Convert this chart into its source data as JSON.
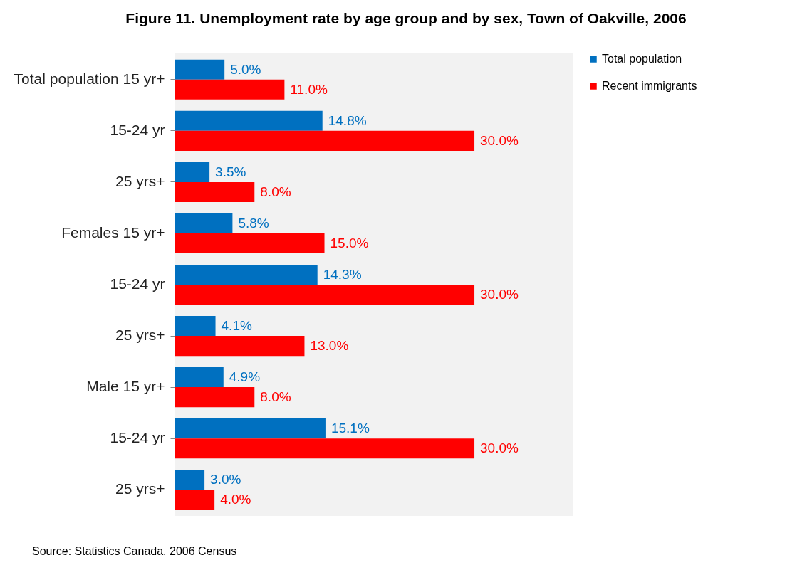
{
  "chart_data": {
    "type": "bar",
    "orientation": "horizontal",
    "title": "Figure 11. Unemployment rate by age group and by sex, Town of Oakville, 2006",
    "categories": [
      "Total population 15 yr+",
      "15-24 yr",
      "25 yrs+",
      "Females 15 yr+",
      "15-24 yr",
      "25 yrs+",
      "Male 15 yr+",
      "15-24 yr",
      "25 yrs+"
    ],
    "series": [
      {
        "name": "Total population",
        "color": "#0070c0",
        "values": [
          5.0,
          14.8,
          3.5,
          5.8,
          14.3,
          4.1,
          4.9,
          15.1,
          3.0
        ],
        "value_labels": [
          "5.0%",
          "14.8%",
          "3.5%",
          "5.8%",
          "14.3%",
          "4.1%",
          "4.9%",
          "15.1%",
          "3.0%"
        ]
      },
      {
        "name": "Recent immigrants",
        "color": "#ff0000",
        "values": [
          11.0,
          30.0,
          8.0,
          15.0,
          30.0,
          13.0,
          8.0,
          30.0,
          4.0
        ],
        "value_labels": [
          "11.0%",
          "30.0%",
          "8.0%",
          "15.0%",
          "30.0%",
          "13.0%",
          "8.0%",
          "30.0%",
          "4.0%"
        ]
      }
    ],
    "legend": "top right",
    "tick_labels": "y",
    "annotations": [
      "Source: Statistics Canada, 2006 Census"
    ]
  }
}
